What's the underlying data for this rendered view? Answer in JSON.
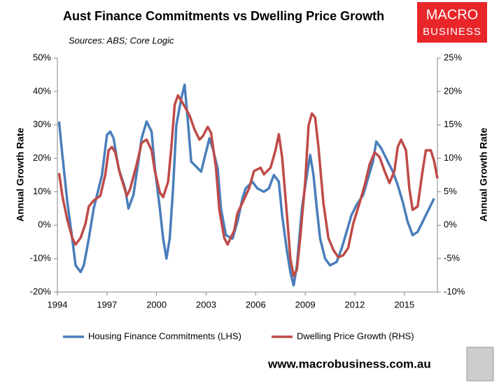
{
  "chart_data": {
    "type": "line",
    "title": "Aust Finance Commitments vs Dwelling Price Growth",
    "subtitle": "Sources: ABS; Core Logic",
    "ylabel": "Annual Growth Rate",
    "y2label": "Annual Growth Rate",
    "xlim": [
      1994,
      2017
    ],
    "xticks": [
      1994,
      1997,
      2000,
      2003,
      2006,
      2009,
      2012,
      2015
    ],
    "ylim": [
      -20,
      50
    ],
    "yticks": [
      {
        "value": -20,
        "label": "-20%"
      },
      {
        "value": -10,
        "label": "-10%"
      },
      {
        "value": 0,
        "label": "0%"
      },
      {
        "value": 10,
        "label": "10%"
      },
      {
        "value": 20,
        "label": "20%"
      },
      {
        "value": 30,
        "label": "30%"
      },
      {
        "value": 40,
        "label": "40%"
      },
      {
        "value": 50,
        "label": "50%"
      }
    ],
    "y2lim": [
      -10,
      25
    ],
    "y2ticks": [
      {
        "value": -10,
        "label": "-10%"
      },
      {
        "value": -5,
        "label": "-5%"
      },
      {
        "value": 0,
        "label": "0%"
      },
      {
        "value": 5,
        "label": "5%"
      },
      {
        "value": 10,
        "label": "10%"
      },
      {
        "value": 15,
        "label": "15%"
      },
      {
        "value": 20,
        "label": "20%"
      },
      {
        "value": 25,
        "label": "25%"
      }
    ],
    "grid": false,
    "legend": "bottom",
    "series": [
      {
        "name": "Housing Finance Commitments (LHS)",
        "color": "#4a7ebb",
        "axis": "y",
        "x": [
          1994.1,
          1994.3,
          1994.6,
          1994.9,
          1995.1,
          1995.4,
          1995.6,
          1995.9,
          1996.2,
          1996.7,
          1997.0,
          1997.2,
          1997.4,
          1997.7,
          1998.1,
          1998.3,
          1998.6,
          1998.9,
          1999.1,
          1999.4,
          1999.7,
          1999.9,
          2000.2,
          2000.4,
          2000.6,
          2000.8,
          2001.0,
          2001.2,
          2001.5,
          2001.7,
          2001.9,
          2002.1,
          2002.5,
          2002.7,
          2002.9,
          2003.2,
          2003.4,
          2003.7,
          2003.9,
          2004.2,
          2004.6,
          2004.9,
          2005.2,
          2005.4,
          2005.8,
          2006.1,
          2006.5,
          2006.8,
          2007.1,
          2007.4,
          2007.6,
          2007.9,
          2008.1,
          2008.3,
          2008.5,
          2008.8,
          2009.1,
          2009.3,
          2009.5,
          2009.7,
          2009.9,
          2010.2,
          2010.5,
          2010.9,
          2011.2,
          2011.5,
          2011.8,
          2012.1,
          2012.5,
          2012.8,
          2013.1,
          2013.3,
          2013.6,
          2013.9,
          2014.3,
          2014.6,
          2014.9,
          2015.2,
          2015.5,
          2015.8,
          2016.1,
          2016.5,
          2016.8
        ],
        "values": [
          31,
          21,
          7,
          -4,
          -12,
          -14,
          -12,
          -4,
          5,
          15,
          27,
          28,
          26,
          17,
          11,
          5,
          9,
          19,
          26,
          31,
          28,
          17,
          5,
          -4,
          -10,
          -4,
          11,
          30,
          38,
          42,
          31,
          19,
          17,
          16,
          20,
          26,
          23,
          17,
          5,
          -3,
          -4,
          1,
          8,
          11,
          13,
          11,
          10,
          11,
          15,
          13,
          3,
          -8,
          -14,
          -18,
          -12,
          5,
          15,
          21,
          15,
          5,
          -4,
          -10,
          -12,
          -11,
          -7,
          -2,
          3,
          6,
          9,
          14,
          19,
          25,
          23,
          20,
          16,
          12,
          7,
          1,
          -3,
          -2,
          1,
          5,
          8
        ]
      },
      {
        "name": "Dwelling Price Growth (RHS)",
        "color": "#be4b48",
        "axis": "y2",
        "x": [
          1994.1,
          1994.3,
          1994.6,
          1994.9,
          1995.1,
          1995.4,
          1995.7,
          1995.9,
          1996.2,
          1996.6,
          1996.9,
          1997.1,
          1997.3,
          1997.5,
          1997.8,
          1998.2,
          1998.4,
          1998.8,
          1999.1,
          1999.4,
          1999.7,
          1999.9,
          2000.2,
          2000.4,
          2000.7,
          2000.9,
          2001.1,
          2001.3,
          2001.6,
          2002.0,
          2002.3,
          2002.6,
          2002.8,
          2003.1,
          2003.3,
          2003.6,
          2003.8,
          2004.1,
          2004.3,
          2004.7,
          2004.9,
          2005.3,
          2005.6,
          2005.9,
          2006.3,
          2006.5,
          2006.9,
          2007.2,
          2007.4,
          2007.6,
          2007.9,
          2008.1,
          2008.3,
          2008.5,
          2008.7,
          2009.0,
          2009.2,
          2009.4,
          2009.6,
          2009.8,
          2010.1,
          2010.4,
          2010.7,
          2011.0,
          2011.3,
          2011.6,
          2011.9,
          2012.3,
          2012.6,
          2012.9,
          2013.2,
          2013.5,
          2013.8,
          2014.1,
          2014.4,
          2014.6,
          2014.8,
          2015.1,
          2015.3,
          2015.5,
          2015.8,
          2016.1,
          2016.3,
          2016.6,
          2016.8,
          2017.0
        ],
        "values": [
          7.8,
          4.4,
          0.8,
          -1.9,
          -2.9,
          -1.9,
          0.2,
          2.8,
          3.7,
          4.4,
          7.6,
          11.2,
          11.7,
          10.9,
          7.6,
          4.4,
          5.4,
          9.1,
          12.3,
          12.8,
          11.2,
          8.1,
          4.9,
          4.2,
          6.5,
          11.7,
          18.0,
          19.4,
          18.2,
          16.4,
          14.3,
          12.8,
          13.3,
          14.7,
          13.8,
          8.6,
          2.3,
          -1.9,
          -2.9,
          -0.8,
          1.8,
          3.9,
          5.5,
          8.1,
          8.6,
          7.6,
          8.6,
          11.2,
          13.6,
          10.2,
          1.3,
          -5.0,
          -7.6,
          -6.6,
          -1.9,
          6.5,
          14.9,
          16.7,
          16.1,
          11.7,
          3.3,
          -1.9,
          -3.7,
          -4.8,
          -4.5,
          -3.4,
          0.2,
          3.4,
          6.0,
          9.1,
          10.9,
          10.2,
          8.1,
          6.3,
          8.1,
          11.7,
          12.8,
          11.2,
          5.5,
          2.3,
          2.8,
          8.1,
          11.2,
          11.2,
          9.6,
          7.0
        ]
      }
    ]
  },
  "branding": {
    "logo_top": "MACRO",
    "logo_bottom": "BUSINESS",
    "url": "www.macrobusiness.com.au"
  }
}
